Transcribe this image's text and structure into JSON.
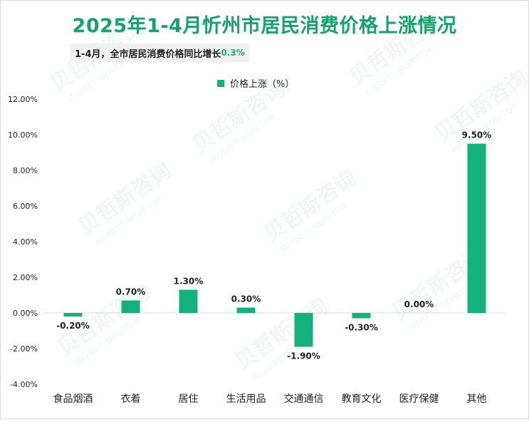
{
  "title": "2025年1-4月忻州市居民消费价格上涨情况",
  "subtitle": {
    "text": "1-4月，全市居民消费价格同比增长",
    "highlight": "0.3%"
  },
  "legend": {
    "label": "价格上涨（%）"
  },
  "watermark": {
    "cn": "贝哲斯咨询",
    "en": "MARKET MONITOR"
  },
  "colors": {
    "bar": "#13b17b",
    "title": "#12a36e",
    "axis": "#d9d9d9"
  },
  "chart_data": {
    "type": "bar",
    "title": "2025年1-4月忻州市居民消费价格上涨情况",
    "categories": [
      "食品烟酒",
      "衣着",
      "居住",
      "生活用品",
      "交通通信",
      "教育文化",
      "医疗保健",
      "其他"
    ],
    "series": [
      {
        "name": "价格上涨（%）",
        "values": [
          -0.2,
          0.7,
          1.3,
          0.3,
          -1.9,
          -0.3,
          0.0,
          9.5
        ]
      }
    ],
    "data_labels": [
      "-0.20%",
      "0.70%",
      "1.30%",
      "0.30%",
      "-1.90%",
      "-0.30%",
      "0.00%",
      "9.50%"
    ],
    "ylim": [
      -4,
      12
    ],
    "yticks": [
      "12.00%",
      "10.00%",
      "8.00%",
      "6.00%",
      "4.00%",
      "2.00%",
      "0.00%",
      "-2.00%",
      "-4.00%"
    ],
    "ytick_values": [
      12,
      10,
      8,
      6,
      4,
      2,
      0,
      -2,
      -4
    ],
    "grid": false,
    "legend_position": "top-center"
  }
}
